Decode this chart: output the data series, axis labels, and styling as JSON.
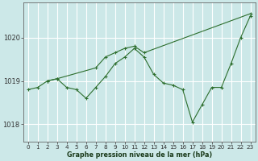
{
  "line1_x": [
    0,
    1,
    2,
    3,
    4,
    5,
    6,
    7,
    8,
    9,
    10,
    11,
    12,
    13,
    14,
    15,
    16,
    17,
    18,
    19,
    20,
    21,
    22,
    23
  ],
  "line1_y": [
    1018.8,
    1018.85,
    1019.0,
    1019.05,
    1018.85,
    1018.8,
    1018.6,
    1018.85,
    1019.1,
    1019.4,
    1019.55,
    1019.75,
    1019.55,
    1019.15,
    1018.95,
    1018.9,
    1018.8,
    1018.05,
    1018.45,
    1018.85,
    1018.85,
    1019.4,
    1020.0,
    1020.5
  ],
  "line2_x": [
    2,
    3,
    7,
    8,
    9,
    10,
    11,
    12,
    23
  ],
  "line2_y": [
    1019.0,
    1019.05,
    1019.3,
    1019.55,
    1019.65,
    1019.75,
    1019.8,
    1019.65,
    1020.55
  ],
  "bg_color": "#cce8e8",
  "grid_color": "#ffffff",
  "line_color": "#2d6e2d",
  "marker": "+",
  "xlabel": "Graphe pression niveau de la mer (hPa)",
  "xtick_labels": [
    "0",
    "1",
    "2",
    "3",
    "4",
    "5",
    "6",
    "7",
    "8",
    "9",
    "10",
    "11",
    "12",
    "13",
    "14",
    "15",
    "16",
    "17",
    "18",
    "19",
    "20",
    "21",
    "22",
    "23"
  ],
  "ytick_labels": [
    "1018",
    "1019",
    "1020"
  ],
  "ytick_vals": [
    1018,
    1019,
    1020
  ],
  "ylim": [
    1017.6,
    1020.8
  ],
  "xlim": [
    -0.5,
    23.5
  ]
}
